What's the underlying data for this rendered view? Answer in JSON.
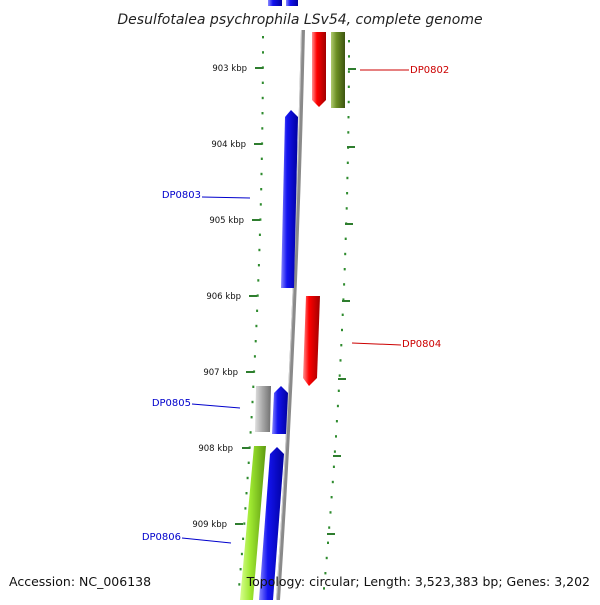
{
  "title": "Desulfotalea psychrophila LSv54, complete genome",
  "accession": "Accession: NC_006138",
  "summary": "Topology: circular; Length: 3,523,383 bp; Genes: 3,202",
  "ruler": {
    "ticks": [
      "903 kbp",
      "904 kbp",
      "905 kbp",
      "906 kbp",
      "907 kbp",
      "908 kbp",
      "909 kbp"
    ]
  },
  "genes": [
    {
      "id": "DP0802",
      "strand": "forward",
      "color": "#cc0000"
    },
    {
      "id": "DP0803",
      "strand": "reverse",
      "color": "#0000cc"
    },
    {
      "id": "DP0804",
      "strand": "forward",
      "color": "#cc0000"
    },
    {
      "id": "DP0805",
      "strand": "reverse",
      "color": "#0000cc"
    },
    {
      "id": "DP0806",
      "strand": "reverse",
      "color": "#0000cc"
    }
  ],
  "colors": {
    "forward_cds": "#ee0000",
    "reverse_cds": "#1010e0",
    "olive_feature": "#6b8e23",
    "grey_feature": "#a8a8a8",
    "lime_feature": "#9ee830",
    "backbone": "#8a8a8a",
    "tick_dots": "#2e8b2e"
  }
}
